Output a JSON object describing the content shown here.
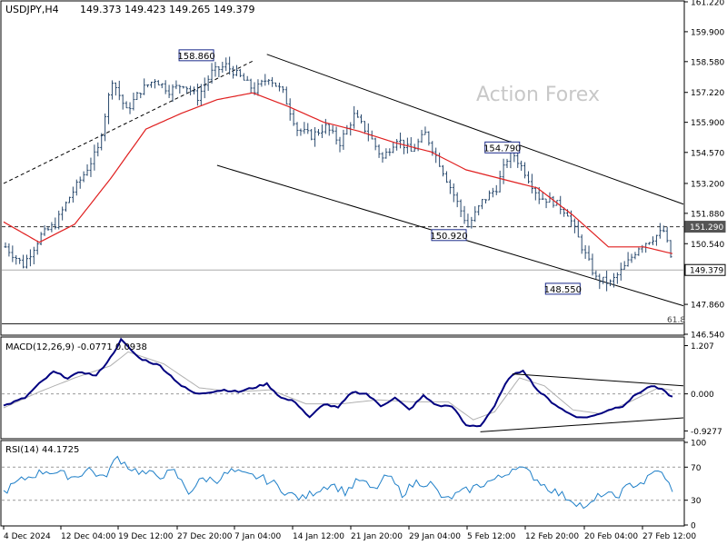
{
  "main": {
    "symbol": "USDJPY,H4",
    "ohlc": "149.373 149.423 149.265 149.379",
    "watermark": "Action Forex",
    "yticks": [
      "161.220",
      "159.900",
      "158.580",
      "157.220",
      "155.900",
      "154.570",
      "153.200",
      "151.880",
      "150.540",
      "149.379",
      "147.860",
      "146.540"
    ],
    "fib_label": "61.8",
    "last_price_label": "149.379",
    "resistance_label": "151.290",
    "annotations": [
      "158.860",
      "154.790",
      "150.920",
      "148.550"
    ],
    "colors": {
      "candle": "#2a4a6e",
      "ma": "#e02020",
      "channel": "#000000",
      "label_border": "#1a2a8a"
    }
  },
  "macd": {
    "label": "MACD(12,26,9) -0.0771 0.0938",
    "yticks": [
      "1.207",
      "0.000",
      "-0.9277"
    ],
    "colors": {
      "macd": "#000080",
      "signal": "#b0b0b0"
    }
  },
  "rsi": {
    "label": "RSI(14) 44.1725",
    "yticks": [
      "100",
      "70",
      "30",
      "0"
    ],
    "colors": {
      "rsi": "#1e7fc8",
      "level": "#999999"
    }
  },
  "xaxis": {
    "ticks": [
      "4 Dec 2024",
      "12 Dec 04:00",
      "19 Dec 12:00",
      "27 Dec 20:00",
      "7 Jan 04:00",
      "14 Jan 12:00",
      "21 Jan 20:00",
      "29 Jan 04:00",
      "5 Feb 12:00",
      "12 Feb 20:00",
      "20 Feb 04:00",
      "27 Feb 12:00"
    ]
  },
  "chart_data": {
    "type": "candlestick",
    "title": "USDJPY,H4",
    "ylim": [
      146.54,
      161.22
    ],
    "anchors_close": [
      [
        0,
        150.4
      ],
      [
        5,
        149.6
      ],
      [
        10,
        150.9
      ],
      [
        14,
        151.4
      ],
      [
        18,
        152.6
      ],
      [
        22,
        153.6
      ],
      [
        26,
        154.7
      ],
      [
        30,
        157.8
      ],
      [
        34,
        156.4
      ],
      [
        38,
        157.3
      ],
      [
        42,
        157.8
      ],
      [
        46,
        157.3
      ],
      [
        50,
        157.6
      ],
      [
        54,
        157.0
      ],
      [
        58,
        158.1
      ],
      [
        62,
        158.4
      ],
      [
        66,
        157.9
      ],
      [
        70,
        157.3
      ],
      [
        74,
        157.9
      ],
      [
        78,
        157.2
      ],
      [
        82,
        155.6
      ],
      [
        86,
        155.3
      ],
      [
        90,
        155.7
      ],
      [
        94,
        155.0
      ],
      [
        98,
        156.2
      ],
      [
        102,
        155.4
      ],
      [
        106,
        154.3
      ],
      [
        110,
        155.2
      ],
      [
        114,
        154.6
      ],
      [
        118,
        155.4
      ],
      [
        122,
        154.1
      ],
      [
        126,
        152.7
      ],
      [
        130,
        151.3
      ],
      [
        134,
        152.4
      ],
      [
        138,
        153.0
      ],
      [
        142,
        154.7
      ],
      [
        146,
        153.7
      ],
      [
        150,
        152.6
      ],
      [
        154,
        152.4
      ],
      [
        158,
        151.9
      ],
      [
        162,
        150.4
      ],
      [
        166,
        149.0
      ],
      [
        170,
        148.8
      ],
      [
        174,
        149.5
      ],
      [
        178,
        150.4
      ],
      [
        182,
        150.8
      ],
      [
        185,
        151.1
      ],
      [
        188,
        149.4
      ]
    ],
    "candle_count": 188,
    "ma_anchors": [
      [
        0,
        151.5
      ],
      [
        10,
        150.6
      ],
      [
        20,
        151.4
      ],
      [
        30,
        153.4
      ],
      [
        40,
        155.6
      ],
      [
        50,
        156.3
      ],
      [
        60,
        156.9
      ],
      [
        70,
        157.2
      ],
      [
        80,
        156.6
      ],
      [
        90,
        155.9
      ],
      [
        100,
        155.5
      ],
      [
        110,
        155.0
      ],
      [
        120,
        154.6
      ],
      [
        130,
        153.8
      ],
      [
        140,
        153.4
      ],
      [
        150,
        153.0
      ],
      [
        160,
        151.8
      ],
      [
        170,
        150.4
      ],
      [
        180,
        150.4
      ],
      [
        188,
        150.1
      ]
    ],
    "channel_upper": [
      [
        74,
        158.9
      ],
      [
        188,
        152.4
      ]
    ],
    "channel_lower": [
      [
        77,
        154.0
      ],
      [
        188,
        148.0
      ]
    ],
    "trendline": [
      [
        0,
        153.2
      ],
      [
        70,
        158.6
      ]
    ],
    "resistance": 151.29,
    "last_price": 149.379,
    "fib_61_8": 147.0,
    "macd_ylim": [
      -1.1,
      1.4
    ],
    "macd_anchors": [
      [
        0,
        -0.3
      ],
      [
        6,
        -0.1
      ],
      [
        10,
        0.25
      ],
      [
        14,
        0.55
      ],
      [
        18,
        0.4
      ],
      [
        22,
        0.55
      ],
      [
        26,
        0.45
      ],
      [
        30,
        0.9
      ],
      [
        33,
        1.35
      ],
      [
        38,
        0.9
      ],
      [
        44,
        0.7
      ],
      [
        50,
        0.2
      ],
      [
        54,
        0.0
      ],
      [
        58,
        0.05
      ],
      [
        62,
        0.1
      ],
      [
        66,
        0.05
      ],
      [
        70,
        0.15
      ],
      [
        74,
        0.25
      ],
      [
        78,
        -0.1
      ],
      [
        82,
        -0.2
      ],
      [
        86,
        -0.6
      ],
      [
        90,
        -0.25
      ],
      [
        94,
        -0.35
      ],
      [
        98,
        0.05
      ],
      [
        102,
        0.0
      ],
      [
        106,
        -0.3
      ],
      [
        110,
        -0.1
      ],
      [
        114,
        -0.4
      ],
      [
        118,
        -0.05
      ],
      [
        122,
        -0.3
      ],
      [
        126,
        -0.3
      ],
      [
        130,
        -0.8
      ],
      [
        134,
        -0.8
      ],
      [
        138,
        -0.3
      ],
      [
        142,
        0.4
      ],
      [
        146,
        0.6
      ],
      [
        150,
        0.1
      ],
      [
        154,
        -0.2
      ],
      [
        158,
        -0.45
      ],
      [
        162,
        -0.6
      ],
      [
        166,
        -0.55
      ],
      [
        170,
        -0.4
      ],
      [
        174,
        -0.3
      ],
      [
        178,
        0.0
      ],
      [
        182,
        0.2
      ],
      [
        185,
        0.1
      ],
      [
        188,
        -0.08
      ]
    ],
    "signal_anchors": [
      [
        0,
        -0.35
      ],
      [
        10,
        0.05
      ],
      [
        20,
        0.4
      ],
      [
        30,
        0.7
      ],
      [
        35,
        1.05
      ],
      [
        45,
        0.75
      ],
      [
        55,
        0.15
      ],
      [
        65,
        0.05
      ],
      [
        75,
        0.1
      ],
      [
        85,
        -0.25
      ],
      [
        95,
        -0.25
      ],
      [
        105,
        -0.15
      ],
      [
        115,
        -0.2
      ],
      [
        125,
        -0.2
      ],
      [
        132,
        -0.65
      ],
      [
        138,
        -0.45
      ],
      [
        145,
        0.4
      ],
      [
        152,
        0.2
      ],
      [
        160,
        -0.4
      ],
      [
        168,
        -0.5
      ],
      [
        176,
        -0.2
      ],
      [
        184,
        0.15
      ],
      [
        188,
        0.09
      ]
    ],
    "macd_lines": [
      [
        [
          143,
          0.5
        ],
        [
          188,
          0.2
        ]
      ],
      [
        [
          134,
          -0.95
        ],
        [
          188,
          -0.6
        ]
      ]
    ],
    "rsi_anchors": [
      [
        0,
        40
      ],
      [
        4,
        52
      ],
      [
        8,
        60
      ],
      [
        12,
        66
      ],
      [
        16,
        62
      ],
      [
        20,
        58
      ],
      [
        24,
        68
      ],
      [
        28,
        56
      ],
      [
        32,
        82
      ],
      [
        36,
        68
      ],
      [
        40,
        62
      ],
      [
        44,
        60
      ],
      [
        48,
        64
      ],
      [
        52,
        40
      ],
      [
        56,
        56
      ],
      [
        60,
        55
      ],
      [
        64,
        65
      ],
      [
        68,
        60
      ],
      [
        72,
        58
      ],
      [
        76,
        50
      ],
      [
        80,
        38
      ],
      [
        84,
        32
      ],
      [
        88,
        42
      ],
      [
        92,
        50
      ],
      [
        96,
        40
      ],
      [
        100,
        55
      ],
      [
        104,
        42
      ],
      [
        108,
        60
      ],
      [
        112,
        38
      ],
      [
        116,
        52
      ],
      [
        120,
        50
      ],
      [
        124,
        30
      ],
      [
        128,
        38
      ],
      [
        132,
        45
      ],
      [
        136,
        52
      ],
      [
        140,
        58
      ],
      [
        144,
        72
      ],
      [
        148,
        62
      ],
      [
        152,
        48
      ],
      [
        156,
        38
      ],
      [
        160,
        30
      ],
      [
        164,
        20
      ],
      [
        168,
        38
      ],
      [
        172,
        34
      ],
      [
        176,
        48
      ],
      [
        180,
        52
      ],
      [
        184,
        68
      ],
      [
        186,
        54
      ],
      [
        188,
        44
      ]
    ]
  }
}
